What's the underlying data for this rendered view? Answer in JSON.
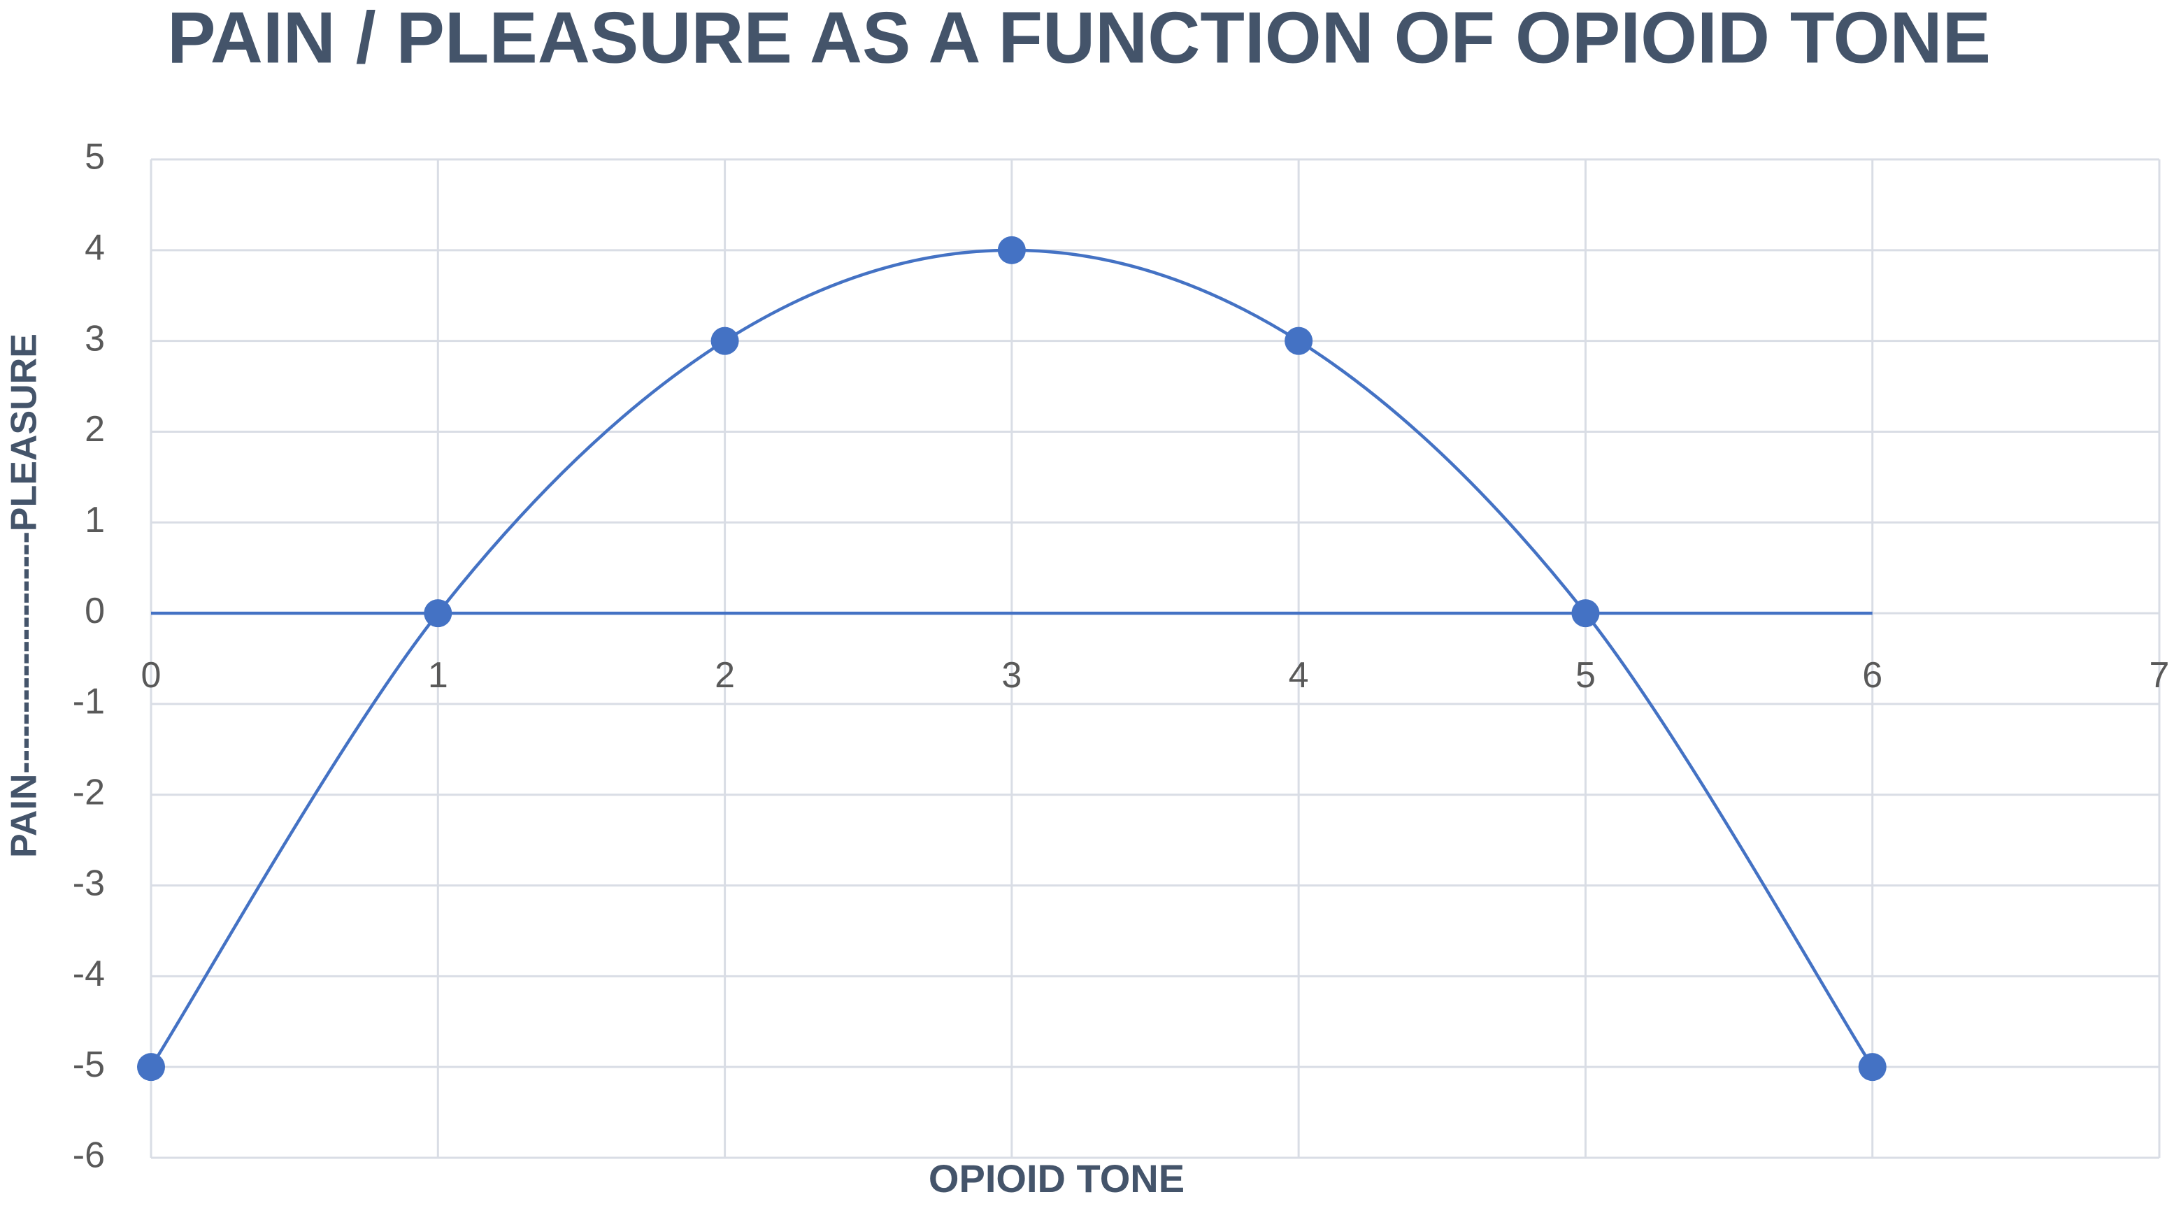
{
  "chart_data": {
    "type": "scatter",
    "title": "PAIN / PLEASURE AS A FUNCTION OF OPIOID TONE",
    "x_label": "OPIOID TONE",
    "y_label": "PAIN--------------------PLEASURE",
    "xlim": [
      0,
      7
    ],
    "xticks": [
      0,
      1,
      2,
      3,
      4,
      5,
      6,
      7
    ],
    "ylim": [
      -6,
      5
    ],
    "yticks": [
      -6,
      -5,
      -4,
      -3,
      -2,
      -1,
      0,
      1,
      2,
      3,
      4,
      5
    ],
    "grid": true,
    "series": [
      {
        "color": "#4472c4",
        "smooth": true,
        "markers": true,
        "x": [
          0,
          1,
          2,
          3,
          4,
          5,
          6
        ],
        "values": [
          -5,
          0,
          3,
          4,
          3,
          0,
          -5
        ]
      },
      {
        "color": "#4472c4",
        "smooth": false,
        "markers": false,
        "x": [
          0,
          1,
          2,
          3,
          4,
          5,
          6
        ],
        "values": [
          0,
          0,
          0,
          0,
          0,
          0,
          0
        ]
      }
    ]
  }
}
